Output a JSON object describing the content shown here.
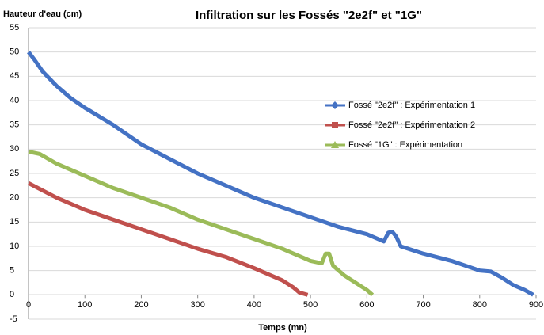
{
  "chart_data": {
    "type": "line",
    "title": "Infiltration sur les Fossés \"2e2f\" et \"1G\"",
    "y_label": "Hauteur d'eau (cm)",
    "x_label": "Temps (mn)",
    "xlim": [
      0,
      900
    ],
    "xticks": [
      0,
      100,
      200,
      300,
      400,
      500,
      600,
      700,
      800,
      900
    ],
    "ylim": [
      -5,
      55
    ],
    "yticks": [
      -5,
      0,
      5,
      10,
      15,
      20,
      25,
      30,
      35,
      40,
      45,
      50,
      55
    ],
    "grid": true,
    "legend": "right",
    "series": [
      {
        "name": "Fossé \"2e2f\" : Expérimentation 1",
        "color": "#4472c4",
        "x": [
          0,
          10,
          25,
          50,
          75,
          100,
          150,
          200,
          250,
          300,
          350,
          400,
          450,
          500,
          550,
          600,
          630,
          638,
          645,
          652,
          660,
          700,
          750,
          800,
          820,
          840,
          860,
          880,
          895
        ],
        "values": [
          50,
          48.5,
          46,
          43,
          40.5,
          38.5,
          35,
          31,
          28,
          25,
          22.5,
          20,
          18,
          16,
          14,
          12.5,
          11,
          12.8,
          13,
          12,
          10,
          8.5,
          7,
          5,
          4.8,
          3.5,
          2,
          1,
          0
        ]
      },
      {
        "name": "Fossé \"2e2f\" : Expérimentation 2",
        "color": "#c0504d",
        "x": [
          0,
          50,
          100,
          150,
          200,
          250,
          300,
          350,
          400,
          430,
          450,
          470,
          480,
          495
        ],
        "values": [
          23,
          20,
          17.5,
          15.5,
          13.5,
          11.5,
          9.5,
          7.8,
          5.5,
          4,
          3,
          1.5,
          0.5,
          0
        ]
      },
      {
        "name": "Fossé \"1G\" : Expérimentation",
        "color": "#9bbb59",
        "x": [
          0,
          20,
          50,
          100,
          150,
          200,
          250,
          300,
          350,
          400,
          450,
          500,
          520,
          527,
          533,
          540,
          560,
          580,
          600,
          610
        ],
        "values": [
          29.5,
          29,
          27,
          24.5,
          22,
          20,
          18,
          15.5,
          13.5,
          11.5,
          9.5,
          7,
          6.5,
          8.5,
          8.5,
          6,
          4,
          2.5,
          1,
          0
        ]
      }
    ]
  }
}
